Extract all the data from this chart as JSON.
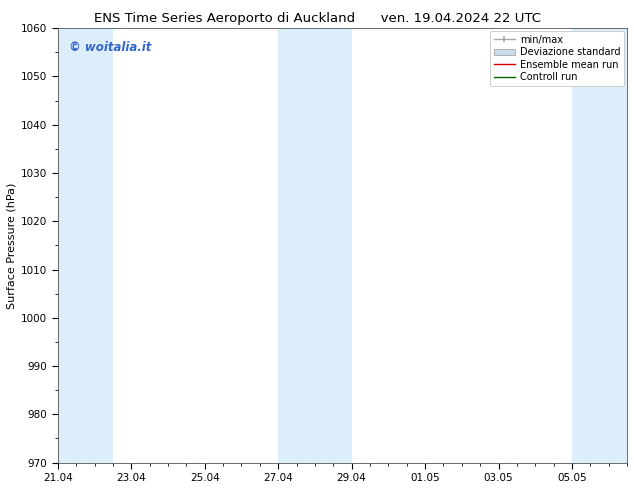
{
  "title_left": "ENS Time Series Aeroporto di Auckland",
  "title_right": "ven. 19.04.2024 22 UTC",
  "ylabel": "Surface Pressure (hPa)",
  "watermark": "© woitalia.it",
  "watermark_color": "#3366cc",
  "ylim": [
    970,
    1060
  ],
  "yticks": [
    970,
    980,
    990,
    1000,
    1010,
    1020,
    1030,
    1040,
    1050,
    1060
  ],
  "xtick_labels": [
    "21.04",
    "23.04",
    "25.04",
    "27.04",
    "29.04",
    "01.05",
    "03.05",
    "05.05"
  ],
  "xtick_positions": [
    0,
    2,
    4,
    6,
    8,
    10,
    12,
    14
  ],
  "xlim": [
    0,
    15.5
  ],
  "shaded_bands": [
    {
      "x_start": 0.0,
      "x_end": 1.5
    },
    {
      "x_start": 6.0,
      "x_end": 8.0
    },
    {
      "x_start": 14.0,
      "x_end": 15.5
    }
  ],
  "shaded_color": "#dceef9",
  "background_color": "#ffffff",
  "title_fontsize": 9.5,
  "tick_fontsize": 7.5,
  "ylabel_fontsize": 8,
  "watermark_fontsize": 8.5,
  "legend_fontsize": 7
}
